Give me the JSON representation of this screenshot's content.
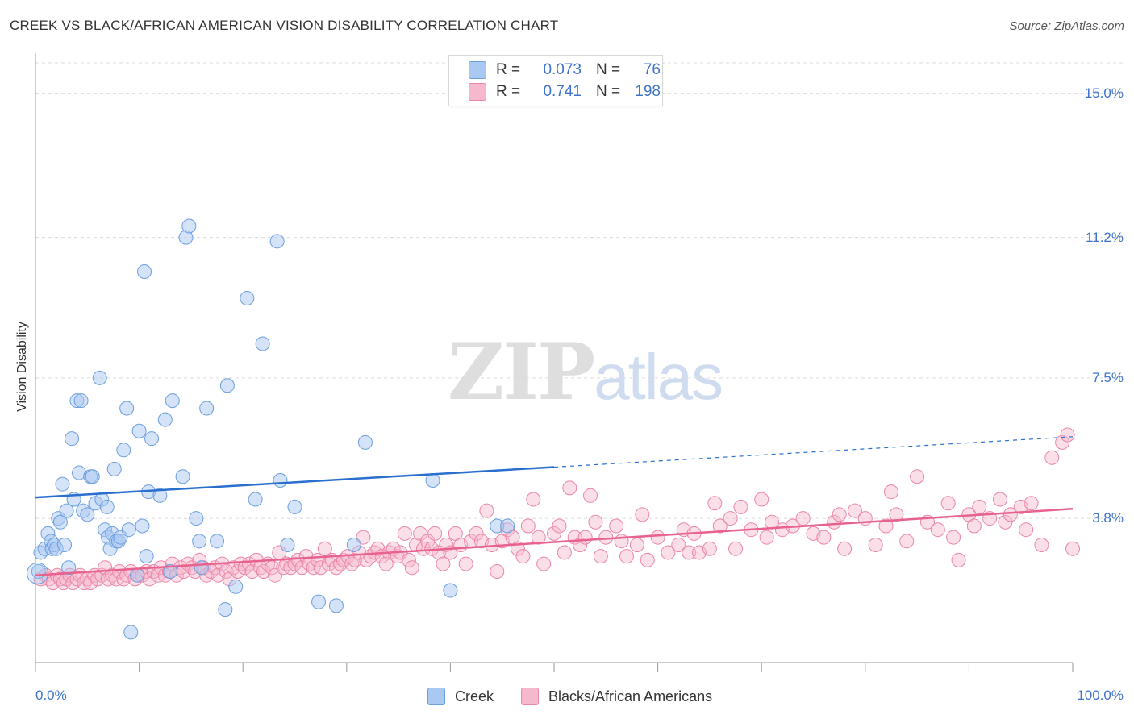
{
  "header": {
    "title": "CREEK VS BLACK/AFRICAN AMERICAN VISION DISABILITY CORRELATION CHART",
    "source": "Source: ZipAtlas.com"
  },
  "watermark": {
    "zip": "ZIP",
    "atlas": "atlas"
  },
  "legend_top": {
    "rows": [
      {
        "r_label": "R =",
        "r_value": "0.073",
        "n_label": "N =",
        "n_value": "76"
      },
      {
        "r_label": "R =",
        "r_value": "0.741",
        "n_label": "N =",
        "n_value": "198"
      }
    ]
  },
  "legend_bottom": {
    "series1": "Creek",
    "series2": "Blacks/African Americans"
  },
  "colors": {
    "creek_fill": "#a9c8f2",
    "creek_stroke": "#6c9fde",
    "creek_line": "#2a6fcf",
    "black_fill": "#f6b8cc",
    "black_stroke": "#ea86a8",
    "black_line": "#e8628e",
    "tick_text": "#3f73c9",
    "grid": "#dcdcdc"
  },
  "chart_data": {
    "type": "scatter",
    "title": "CREEK VS BLACK/AFRICAN AMERICAN VISION DISABILITY CORRELATION CHART",
    "xlabel": "",
    "ylabel": "Vision Disability",
    "xlim": [
      0,
      100
    ],
    "ylim": [
      0,
      15.8
    ],
    "x_tick_labels": [
      "0.0%",
      "100.0%"
    ],
    "y_ticks": [
      3.8,
      7.5,
      11.2,
      15.0
    ],
    "y_tick_labels": [
      "3.8%",
      "7.5%",
      "11.2%",
      "15.0%"
    ],
    "grid": true,
    "legend_position": "top-center",
    "series": [
      {
        "name": "Creek",
        "r": 0.073,
        "n": 76,
        "trend": {
          "x0": 0,
          "y0": 4.35,
          "x1": 50,
          "y1": 5.15,
          "dashed_to_x": 100,
          "dashed_to_y": 5.95
        },
        "points": [
          [
            0.3,
            2.4
          ],
          [
            0.5,
            2.9
          ],
          [
            0.9,
            3.0
          ],
          [
            1.2,
            3.4
          ],
          [
            1.5,
            3.2
          ],
          [
            1.6,
            3.0
          ],
          [
            1.8,
            3.1
          ],
          [
            2.0,
            3.0
          ],
          [
            2.2,
            3.8
          ],
          [
            2.4,
            3.7
          ],
          [
            2.6,
            4.7
          ],
          [
            2.8,
            3.1
          ],
          [
            3.0,
            4.0
          ],
          [
            3.2,
            2.5
          ],
          [
            3.5,
            5.9
          ],
          [
            3.7,
            4.3
          ],
          [
            4.0,
            6.9
          ],
          [
            4.2,
            5.0
          ],
          [
            4.4,
            6.9
          ],
          [
            4.6,
            4.0
          ],
          [
            5.0,
            3.9
          ],
          [
            5.3,
            4.9
          ],
          [
            5.5,
            4.9
          ],
          [
            5.8,
            4.2
          ],
          [
            6.2,
            7.5
          ],
          [
            6.4,
            4.3
          ],
          [
            6.7,
            3.5
          ],
          [
            6.9,
            4.1
          ],
          [
            7.0,
            3.3
          ],
          [
            7.2,
            3.0
          ],
          [
            7.4,
            3.4
          ],
          [
            7.6,
            5.1
          ],
          [
            7.8,
            3.2
          ],
          [
            8.0,
            3.2
          ],
          [
            8.2,
            3.3
          ],
          [
            8.5,
            5.6
          ],
          [
            8.8,
            6.7
          ],
          [
            9.0,
            3.5
          ],
          [
            9.2,
            0.8
          ],
          [
            9.8,
            2.3
          ],
          [
            10.0,
            6.1
          ],
          [
            10.3,
            3.6
          ],
          [
            10.5,
            10.3
          ],
          [
            10.7,
            2.8
          ],
          [
            10.9,
            4.5
          ],
          [
            11.2,
            5.9
          ],
          [
            12.0,
            4.4
          ],
          [
            12.5,
            6.4
          ],
          [
            13.0,
            2.4
          ],
          [
            13.2,
            6.9
          ],
          [
            14.2,
            4.9
          ],
          [
            14.5,
            11.2
          ],
          [
            14.8,
            11.5
          ],
          [
            15.5,
            3.8
          ],
          [
            15.8,
            3.2
          ],
          [
            16.0,
            2.5
          ],
          [
            16.5,
            6.7
          ],
          [
            17.5,
            3.2
          ],
          [
            18.3,
            1.4
          ],
          [
            18.5,
            7.3
          ],
          [
            19.3,
            2.0
          ],
          [
            20.4,
            9.6
          ],
          [
            21.2,
            4.3
          ],
          [
            21.9,
            8.4
          ],
          [
            23.3,
            11.1
          ],
          [
            23.6,
            4.8
          ],
          [
            24.3,
            3.1
          ],
          [
            25.0,
            4.1
          ],
          [
            27.3,
            1.6
          ],
          [
            29.0,
            1.5
          ],
          [
            30.7,
            3.1
          ],
          [
            31.8,
            5.8
          ],
          [
            38.3,
            4.8
          ],
          [
            40.0,
            1.9
          ],
          [
            44.5,
            3.6
          ],
          [
            45.5,
            3.6
          ]
        ]
      },
      {
        "name": "Blacks/African Americans",
        "r": 0.741,
        "n": 198,
        "trend": {
          "x0": 0,
          "y0": 2.3,
          "x1": 100,
          "y1": 4.05
        },
        "points": [
          [
            0.5,
            2.2
          ],
          [
            1.0,
            2.3
          ],
          [
            1.3,
            2.2
          ],
          [
            1.7,
            2.1
          ],
          [
            2.1,
            2.3
          ],
          [
            2.4,
            2.2
          ],
          [
            2.7,
            2.1
          ],
          [
            3.0,
            2.2
          ],
          [
            3.3,
            2.3
          ],
          [
            3.6,
            2.1
          ],
          [
            4.0,
            2.2
          ],
          [
            4.3,
            2.3
          ],
          [
            4.7,
            2.1
          ],
          [
            5.0,
            2.2
          ],
          [
            5.3,
            2.1
          ],
          [
            5.7,
            2.3
          ],
          [
            6.0,
            2.2
          ],
          [
            6.4,
            2.3
          ],
          [
            6.7,
            2.5
          ],
          [
            7.0,
            2.2
          ],
          [
            7.4,
            2.3
          ],
          [
            7.8,
            2.2
          ],
          [
            8.1,
            2.4
          ],
          [
            8.5,
            2.2
          ],
          [
            8.8,
            2.3
          ],
          [
            9.2,
            2.4
          ],
          [
            9.6,
            2.2
          ],
          [
            9.9,
            2.3
          ],
          [
            10.3,
            2.3
          ],
          [
            10.7,
            2.4
          ],
          [
            11.0,
            2.2
          ],
          [
            11.4,
            2.4
          ],
          [
            11.8,
            2.3
          ],
          [
            12.1,
            2.5
          ],
          [
            12.5,
            2.3
          ],
          [
            12.9,
            2.4
          ],
          [
            13.2,
            2.6
          ],
          [
            13.6,
            2.3
          ],
          [
            14.0,
            2.5
          ],
          [
            14.3,
            2.4
          ],
          [
            14.7,
            2.6
          ],
          [
            15.1,
            2.5
          ],
          [
            15.4,
            2.4
          ],
          [
            15.8,
            2.7
          ],
          [
            16.2,
            2.5
          ],
          [
            16.5,
            2.3
          ],
          [
            16.9,
            2.4
          ],
          [
            17.3,
            2.5
          ],
          [
            17.6,
            2.3
          ],
          [
            18.0,
            2.6
          ],
          [
            18.4,
            2.4
          ],
          [
            18.7,
            2.2
          ],
          [
            19.1,
            2.5
          ],
          [
            19.5,
            2.4
          ],
          [
            19.8,
            2.6
          ],
          [
            20.2,
            2.5
          ],
          [
            20.6,
            2.6
          ],
          [
            20.9,
            2.4
          ],
          [
            21.3,
            2.7
          ],
          [
            21.7,
            2.5
          ],
          [
            22.0,
            2.4
          ],
          [
            22.4,
            2.6
          ],
          [
            22.8,
            2.5
          ],
          [
            23.1,
            2.3
          ],
          [
            23.5,
            2.9
          ],
          [
            23.9,
            2.5
          ],
          [
            24.2,
            2.6
          ],
          [
            24.6,
            2.5
          ],
          [
            25.0,
            2.6
          ],
          [
            25.3,
            2.7
          ],
          [
            25.7,
            2.5
          ],
          [
            26.1,
            2.8
          ],
          [
            26.4,
            2.6
          ],
          [
            26.8,
            2.5
          ],
          [
            27.2,
            2.7
          ],
          [
            27.5,
            2.5
          ],
          [
            27.9,
            3.0
          ],
          [
            28.3,
            2.6
          ],
          [
            28.6,
            2.7
          ],
          [
            29.0,
            2.5
          ],
          [
            29.4,
            2.6
          ],
          [
            29.7,
            2.7
          ],
          [
            30.1,
            2.8
          ],
          [
            30.5,
            2.6
          ],
          [
            30.8,
            2.7
          ],
          [
            31.2,
            2.9
          ],
          [
            31.6,
            3.3
          ],
          [
            31.9,
            2.7
          ],
          [
            32.3,
            2.8
          ],
          [
            32.7,
            2.9
          ],
          [
            33.0,
            3.0
          ],
          [
            33.4,
            2.8
          ],
          [
            33.8,
            2.6
          ],
          [
            34.1,
            2.9
          ],
          [
            34.5,
            3.0
          ],
          [
            34.9,
            2.8
          ],
          [
            35.2,
            2.9
          ],
          [
            35.6,
            3.4
          ],
          [
            36.0,
            2.7
          ],
          [
            36.3,
            2.5
          ],
          [
            36.7,
            3.1
          ],
          [
            37.1,
            3.4
          ],
          [
            37.4,
            3.0
          ],
          [
            37.8,
            3.2
          ],
          [
            38.2,
            3.0
          ],
          [
            38.5,
            3.4
          ],
          [
            38.9,
            2.9
          ],
          [
            39.3,
            2.6
          ],
          [
            39.6,
            3.1
          ],
          [
            40.0,
            2.9
          ],
          [
            40.5,
            3.4
          ],
          [
            41.0,
            3.1
          ],
          [
            41.5,
            2.6
          ],
          [
            42.0,
            3.2
          ],
          [
            42.5,
            3.4
          ],
          [
            43.0,
            3.2
          ],
          [
            43.5,
            4.0
          ],
          [
            44.0,
            3.1
          ],
          [
            44.5,
            2.4
          ],
          [
            45.0,
            3.2
          ],
          [
            45.5,
            3.5
          ],
          [
            46.0,
            3.3
          ],
          [
            46.5,
            3.0
          ],
          [
            47.0,
            2.8
          ],
          [
            47.5,
            3.6
          ],
          [
            48.0,
            4.3
          ],
          [
            48.5,
            3.3
          ],
          [
            49.0,
            2.6
          ],
          [
            50.0,
            3.4
          ],
          [
            50.5,
            3.6
          ],
          [
            51.0,
            2.9
          ],
          [
            51.5,
            4.6
          ],
          [
            52.0,
            3.3
          ],
          [
            52.5,
            3.1
          ],
          [
            53.0,
            3.3
          ],
          [
            53.5,
            4.4
          ],
          [
            54.0,
            3.7
          ],
          [
            54.5,
            2.8
          ],
          [
            55.0,
            3.3
          ],
          [
            56.0,
            3.6
          ],
          [
            56.5,
            3.2
          ],
          [
            57.0,
            2.8
          ],
          [
            58.0,
            3.1
          ],
          [
            58.5,
            3.9
          ],
          [
            59.0,
            2.7
          ],
          [
            60.0,
            3.3
          ],
          [
            61.0,
            2.9
          ],
          [
            62.0,
            3.1
          ],
          [
            62.5,
            3.5
          ],
          [
            63.0,
            2.9
          ],
          [
            63.5,
            3.4
          ],
          [
            64.0,
            2.9
          ],
          [
            65.0,
            3.0
          ],
          [
            65.5,
            4.2
          ],
          [
            66.0,
            3.6
          ],
          [
            67.0,
            3.8
          ],
          [
            67.5,
            3.0
          ],
          [
            68.0,
            4.1
          ],
          [
            69.0,
            3.5
          ],
          [
            70.0,
            4.3
          ],
          [
            70.5,
            3.3
          ],
          [
            71.0,
            3.7
          ],
          [
            72.0,
            3.5
          ],
          [
            73.0,
            3.6
          ],
          [
            74.0,
            3.8
          ],
          [
            75.0,
            3.4
          ],
          [
            76.0,
            3.3
          ],
          [
            77.0,
            3.7
          ],
          [
            77.5,
            3.9
          ],
          [
            78.0,
            3.0
          ],
          [
            79.0,
            4.0
          ],
          [
            80.0,
            3.8
          ],
          [
            81.0,
            3.1
          ],
          [
            82.0,
            3.6
          ],
          [
            82.5,
            4.5
          ],
          [
            83.0,
            3.9
          ],
          [
            84.0,
            3.2
          ],
          [
            85.0,
            4.9
          ],
          [
            86.0,
            3.7
          ],
          [
            87.0,
            3.5
          ],
          [
            88.0,
            4.2
          ],
          [
            88.5,
            3.3
          ],
          [
            89.0,
            2.7
          ],
          [
            90.0,
            3.9
          ],
          [
            90.5,
            3.6
          ],
          [
            91.0,
            4.1
          ],
          [
            92.0,
            3.8
          ],
          [
            93.0,
            4.3
          ],
          [
            93.5,
            3.7
          ],
          [
            94.0,
            3.9
          ],
          [
            95.0,
            4.1
          ],
          [
            95.5,
            3.5
          ],
          [
            96.0,
            4.2
          ],
          [
            97.0,
            3.1
          ],
          [
            98.0,
            5.4
          ],
          [
            99.0,
            5.8
          ],
          [
            99.5,
            6.0
          ],
          [
            100.0,
            3.0
          ]
        ]
      }
    ]
  }
}
